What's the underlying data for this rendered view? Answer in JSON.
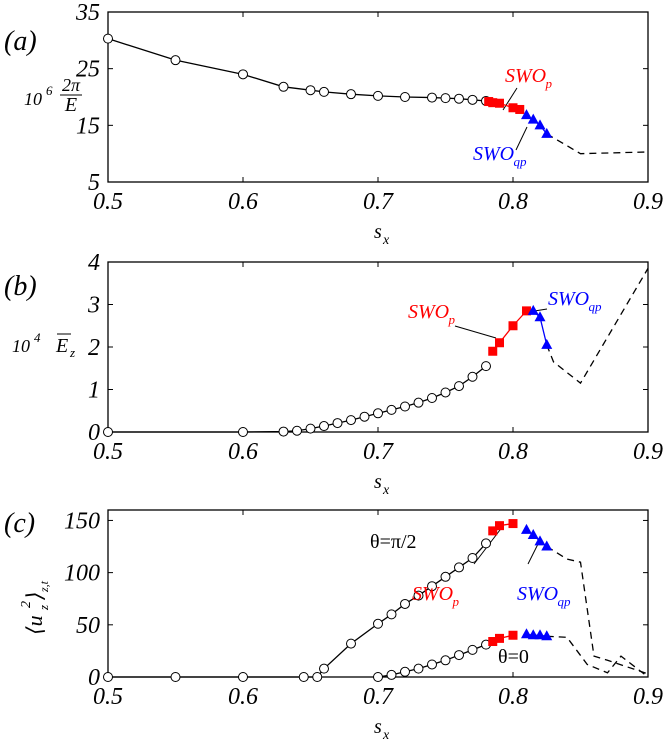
{
  "colors": {
    "axis": "#000000",
    "line": "#000000",
    "swo_p": "#ff0000",
    "swo_qp": "#0000ff",
    "background": "#ffffff"
  },
  "chart_data": [
    {
      "type": "line",
      "panel": "(a)",
      "xlabel": "s",
      "xlabel_sub": "x",
      "ylabel_prefix": "10",
      "ylabel_exp": "6",
      "ylabel_num": "2π",
      "ylabel_den": "E",
      "xlim": [
        0.5,
        0.9
      ],
      "ylim": [
        5,
        35
      ],
      "xticks": [
        0.5,
        0.6,
        0.7,
        0.8,
        0.9
      ],
      "yticks": [
        5,
        15,
        25,
        35
      ],
      "xtick_labels": [
        "0.5",
        "0.6",
        "0.7",
        "0.8",
        "0.9"
      ],
      "ytick_labels": [
        "5",
        "15",
        "25",
        "35"
      ],
      "series": [
        {
          "marker": "open-circle",
          "x": [
            0.5,
            0.55,
            0.6,
            0.63,
            0.65,
            0.66,
            0.68,
            0.7,
            0.72,
            0.74,
            0.75,
            0.76,
            0.77,
            0.78
          ],
          "y": [
            30.3,
            26.5,
            24.0,
            21.8,
            21.2,
            20.9,
            20.5,
            20.2,
            20.0,
            19.9,
            19.8,
            19.7,
            19.5,
            19.3
          ]
        },
        {
          "name": "SWO",
          "name_sub": "p",
          "marker": "filled-square",
          "color": "red",
          "x": [
            0.782,
            0.785,
            0.79,
            0.8,
            0.805
          ],
          "y": [
            19.2,
            19.0,
            18.9,
            18.1,
            17.8
          ]
        },
        {
          "name": "SWO",
          "name_sub": "qp",
          "marker": "filled-triangle",
          "color": "blue",
          "x": [
            0.81,
            0.815,
            0.82,
            0.825
          ],
          "y": [
            16.8,
            16.0,
            15.0,
            13.5
          ]
        },
        {
          "marker": "none",
          "style": "dashed",
          "x": [
            0.825,
            0.85,
            0.9
          ],
          "y": [
            13.5,
            10.0,
            10.3
          ]
        }
      ],
      "annotations": [
        {
          "text": "SWO",
          "sub": "p",
          "color": "red"
        },
        {
          "text": "SWO",
          "sub": "qp",
          "color": "blue"
        }
      ]
    },
    {
      "type": "line",
      "panel": "(b)",
      "xlabel": "s",
      "xlabel_sub": "x",
      "ylabel_prefix": "10",
      "ylabel_exp": "4",
      "ylabel_var": "E",
      "ylabel_sub": "z",
      "xlim": [
        0.5,
        0.9
      ],
      "ylim": [
        0,
        4
      ],
      "xticks": [
        0.5,
        0.6,
        0.7,
        0.8,
        0.9
      ],
      "yticks": [
        0,
        1,
        2,
        3,
        4
      ],
      "xtick_labels": [
        "0.5",
        "0.6",
        "0.7",
        "0.8",
        "0.9"
      ],
      "ytick_labels": [
        "0",
        "1",
        "2",
        "3",
        "4"
      ],
      "series": [
        {
          "marker": "open-circle",
          "x": [
            0.5,
            0.6,
            0.63,
            0.64,
            0.65,
            0.66,
            0.67,
            0.68,
            0.69,
            0.7,
            0.71,
            0.72,
            0.73,
            0.74,
            0.75,
            0.76,
            0.77,
            0.78
          ],
          "y": [
            0,
            0,
            0.01,
            0.03,
            0.08,
            0.14,
            0.21,
            0.28,
            0.36,
            0.44,
            0.52,
            0.6,
            0.69,
            0.8,
            0.93,
            1.08,
            1.3,
            1.55
          ]
        },
        {
          "name": "SWO",
          "name_sub": "p",
          "marker": "filled-square",
          "color": "red",
          "x": [
            0.785,
            0.79,
            0.8,
            0.81
          ],
          "y": [
            1.9,
            2.1,
            2.5,
            2.85
          ]
        },
        {
          "name": "SWO",
          "name_sub": "qp",
          "marker": "filled-triangle",
          "color": "blue",
          "x": [
            0.815,
            0.82,
            0.825
          ],
          "y": [
            2.85,
            2.7,
            2.05
          ]
        },
        {
          "marker": "none",
          "style": "dashed",
          "x": [
            0.825,
            0.83,
            0.85,
            0.9
          ],
          "y": [
            2.05,
            1.65,
            1.15,
            3.85
          ]
        }
      ],
      "annotations": [
        {
          "text": "SWO",
          "sub": "p",
          "color": "red"
        },
        {
          "text": "SWO",
          "sub": "qp",
          "color": "blue"
        }
      ]
    },
    {
      "type": "line",
      "panel": "(c)",
      "xlabel": "s",
      "xlabel_sub": "x",
      "ylabel": "⟨u",
      "ylabel_sub": "z",
      "ylabel_exp": "2",
      "ylabel_close": "⟩",
      "ylabel_close_sub": "z,t",
      "xlim": [
        0.5,
        0.9
      ],
      "ylim": [
        0,
        160
      ],
      "xticks": [
        0.5,
        0.6,
        0.7,
        0.8,
        0.9
      ],
      "yticks": [
        0,
        50,
        100,
        150
      ],
      "xtick_labels": [
        "0.5",
        "0.6",
        "0.7",
        "0.8",
        "0.9"
      ],
      "ytick_labels": [
        "0",
        "50",
        "100",
        "150"
      ],
      "series": [
        {
          "name": "θ=π/2",
          "marker": "open-circle",
          "x": [
            0.5,
            0.55,
            0.6,
            0.645,
            0.655,
            0.66,
            0.68,
            0.7,
            0.71,
            0.72,
            0.73,
            0.74,
            0.75,
            0.76,
            0.77,
            0.78
          ],
          "y": [
            0,
            0,
            0,
            0,
            0,
            8,
            32,
            51,
            60,
            70,
            78,
            87,
            96,
            105,
            114,
            128
          ]
        },
        {
          "name": "SWO",
          "name_sub": "p",
          "marker": "filled-square",
          "color": "red",
          "x": [
            0.785,
            0.79,
            0.8
          ],
          "y": [
            140,
            145,
            147
          ]
        },
        {
          "name": "SWO",
          "name_sub": "qp",
          "marker": "filled-triangle",
          "color": "blue",
          "x": [
            0.81,
            0.815,
            0.82,
            0.825
          ],
          "y": [
            141,
            136,
            130,
            125
          ]
        },
        {
          "marker": "none",
          "style": "dashed",
          "x": [
            0.825,
            0.84,
            0.85,
            0.86,
            0.87,
            0.9
          ],
          "y": [
            125,
            113,
            110,
            20,
            16,
            3
          ]
        },
        {
          "name": "θ=0",
          "marker": "open-circle",
          "x": [
            0.7,
            0.71,
            0.72,
            0.73,
            0.74,
            0.75,
            0.76,
            0.77,
            0.78
          ],
          "y": [
            0,
            2,
            5,
            8,
            12,
            16,
            21,
            26,
            31
          ]
        },
        {
          "name": "SWO",
          "name_sub": "p",
          "marker": "filled-square",
          "color": "red",
          "x": [
            0.785,
            0.79,
            0.8
          ],
          "y": [
            34,
            37,
            40
          ]
        },
        {
          "name": "SWO",
          "name_sub": "qp",
          "marker": "filled-triangle",
          "color": "blue",
          "x": [
            0.81,
            0.815,
            0.82,
            0.825
          ],
          "y": [
            41,
            40,
            40,
            39
          ]
        },
        {
          "marker": "none",
          "style": "dashed",
          "x": [
            0.825,
            0.84,
            0.855,
            0.87,
            0.88,
            0.9
          ],
          "y": [
            39,
            38,
            12,
            4,
            20,
            0
          ]
        }
      ],
      "annotations": [
        {
          "text": "θ=π/2"
        },
        {
          "text": "θ=0"
        },
        {
          "text": "SWO",
          "sub": "p",
          "color": "red"
        },
        {
          "text": "SWO",
          "sub": "qp",
          "color": "blue"
        }
      ]
    }
  ]
}
